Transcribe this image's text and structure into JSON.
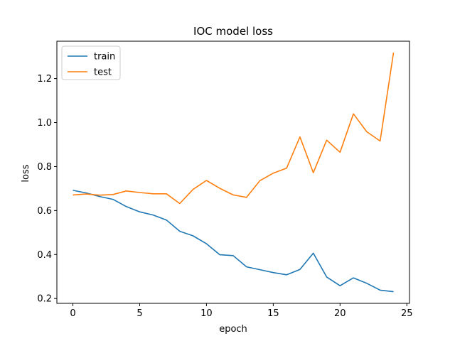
{
  "chart_data": {
    "type": "line",
    "title": "IOC model loss",
    "xlabel": "epoch",
    "ylabel": "loss",
    "xlim": [
      -1.2,
      25.2
    ],
    "ylim": [
      0.178,
      1.37
    ],
    "xticks": [
      0,
      5,
      10,
      15,
      20,
      25
    ],
    "yticks": [
      0.2,
      0.4,
      0.6,
      0.8,
      1.0,
      1.2
    ],
    "grid": false,
    "legend_position": "upper-left",
    "x": [
      0,
      1,
      2,
      3,
      4,
      5,
      6,
      7,
      8,
      9,
      10,
      11,
      12,
      13,
      14,
      15,
      16,
      17,
      18,
      19,
      20,
      21,
      22,
      23,
      24
    ],
    "series": [
      {
        "name": "train",
        "color": "#1f77b4",
        "values": [
          0.692,
          0.68,
          0.664,
          0.651,
          0.618,
          0.594,
          0.58,
          0.557,
          0.506,
          0.485,
          0.449,
          0.399,
          0.395,
          0.344,
          0.331,
          0.318,
          0.308,
          0.332,
          0.406,
          0.298,
          0.258,
          0.294,
          0.269,
          0.238,
          0.231
        ]
      },
      {
        "name": "test",
        "color": "#ff7f0e",
        "values": [
          0.671,
          0.675,
          0.67,
          0.673,
          0.689,
          0.682,
          0.676,
          0.676,
          0.632,
          0.696,
          0.737,
          0.701,
          0.671,
          0.66,
          0.736,
          0.77,
          0.793,
          0.935,
          0.772,
          0.92,
          0.865,
          1.04,
          0.958,
          0.916,
          1.318
        ]
      }
    ]
  }
}
